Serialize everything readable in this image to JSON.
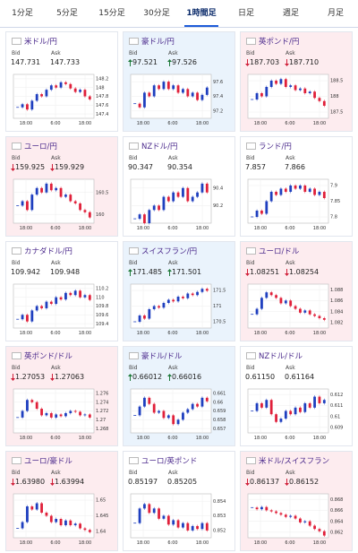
{
  "tabs": {
    "items": [
      "1分足",
      "5分足",
      "15分足",
      "30分足",
      "1時間足",
      "日足",
      "週足",
      "月足"
    ],
    "active": 4
  },
  "labels": {
    "bid": "Bid",
    "ask": "Ask"
  },
  "xticks": [
    "18:00",
    "6:00",
    "18:00"
  ],
  "cards": [
    {
      "title": "米ドル/円",
      "bid": "147.731",
      "ask": "147.733",
      "trend": null,
      "ylim": [
        147.3,
        148.3
      ],
      "yticks": [
        148.2,
        148,
        147.8,
        147.6,
        147.4
      ],
      "values": [
        147.55,
        147.62,
        147.5,
        147.7,
        147.85,
        147.8,
        147.95,
        148.05,
        148.0,
        148.12,
        148.08,
        147.98,
        147.9,
        147.95,
        147.8,
        147.73
      ]
    },
    {
      "title": "豪ドル/円",
      "bid": "97.521",
      "ask": "97.526",
      "trend": "up",
      "ylim": [
        97.1,
        97.7
      ],
      "yticks": [
        97.6,
        97.4,
        97.2
      ],
      "values": [
        97.3,
        97.25,
        97.45,
        97.4,
        97.55,
        97.5,
        97.6,
        97.5,
        97.55,
        97.45,
        97.5,
        97.4,
        97.45,
        97.35,
        97.42,
        97.52
      ]
    },
    {
      "title": "英ポンド/円",
      "bid": "187.703",
      "ask": "187.710",
      "trend": "down",
      "ylim": [
        187.3,
        188.7
      ],
      "yticks": [
        188.5,
        188,
        187.5
      ],
      "values": [
        187.9,
        188.1,
        188.0,
        188.3,
        188.5,
        188.4,
        188.55,
        188.3,
        188.35,
        188.2,
        188.25,
        188.1,
        188.15,
        187.95,
        187.85,
        187.7
      ]
    },
    {
      "title": "ユーロ/円",
      "bid": "159.925",
      "ask": "159.929",
      "trend": "down",
      "ylim": [
        159.8,
        160.8
      ],
      "yticks": [
        160.5,
        160
      ],
      "values": [
        160.2,
        160.3,
        160.1,
        160.45,
        160.6,
        160.5,
        160.7,
        160.55,
        160.6,
        160.4,
        160.45,
        160.3,
        160.25,
        160.1,
        160.05,
        159.93
      ]
    },
    {
      "title": "NZドル/円",
      "bid": "90.347",
      "ask": "90.354",
      "trend": null,
      "ylim": [
        90.0,
        90.5
      ],
      "yticks": [
        90.4,
        90.2
      ],
      "values": [
        90.05,
        90.1,
        90.0,
        90.15,
        90.2,
        90.15,
        90.3,
        90.25,
        90.35,
        90.3,
        90.4,
        90.25,
        90.3,
        90.35,
        90.45,
        90.35
      ]
    },
    {
      "title": "ランド/円",
      "bid": "7.857",
      "ask": "7.866",
      "trend": null,
      "ylim": [
        7.78,
        7.92
      ],
      "yticks": [
        7.9,
        7.85,
        7.8
      ],
      "values": [
        7.8,
        7.82,
        7.81,
        7.85,
        7.88,
        7.87,
        7.89,
        7.88,
        7.9,
        7.89,
        7.9,
        7.88,
        7.89,
        7.87,
        7.88,
        7.86
      ]
    },
    {
      "title": "カナダドル/円",
      "bid": "109.942",
      "ask": "109.948",
      "trend": null,
      "ylim": [
        109.3,
        110.3
      ],
      "yticks": [
        110.2,
        110,
        109.8,
        109.6,
        109.4
      ],
      "values": [
        109.5,
        109.6,
        109.45,
        109.7,
        109.8,
        109.75,
        109.9,
        109.85,
        110.0,
        109.95,
        110.1,
        110.05,
        110.15,
        110.0,
        110.05,
        109.94
      ]
    },
    {
      "title": "スイスフラン/円",
      "bid": "171.485",
      "ask": "171.501",
      "trend": "up",
      "ylim": [
        170.3,
        171.7
      ],
      "yticks": [
        171.5,
        171,
        170.5
      ],
      "values": [
        170.5,
        170.7,
        170.6,
        170.9,
        171.0,
        170.95,
        171.1,
        171.2,
        171.15,
        171.3,
        171.25,
        171.4,
        171.35,
        171.45,
        171.55,
        171.49
      ]
    },
    {
      "title": "ユーロ/ドル",
      "bid": "1.08251",
      "ask": "1.08254",
      "trend": "down",
      "ylim": [
        1.081,
        1.089
      ],
      "yticks": [
        1.088,
        1.086,
        1.084,
        1.082
      ],
      "values": [
        1.0835,
        1.0845,
        1.0865,
        1.0875,
        1.087,
        1.0865,
        1.0855,
        1.086,
        1.085,
        1.0845,
        1.0838,
        1.0842,
        1.0835,
        1.0832,
        1.0828,
        1.0825
      ]
    },
    {
      "title": "英ポンド/ドル",
      "bid": "1.27053",
      "ask": "1.27063",
      "trend": "down",
      "ylim": [
        1.267,
        1.277
      ],
      "yticks": [
        1.276,
        1.274,
        1.272,
        1.27,
        1.268
      ],
      "values": [
        1.2705,
        1.272,
        1.2745,
        1.274,
        1.2725,
        1.271,
        1.2715,
        1.2705,
        1.2712,
        1.2708,
        1.2715,
        1.272,
        1.2718,
        1.271,
        1.2712,
        1.2705
      ]
    },
    {
      "title": "豪ドル/ドル",
      "bid": "0.66012",
      "ask": "0.66016",
      "trend": "up",
      "ylim": [
        0.6565,
        0.6615
      ],
      "yticks": [
        0.661,
        0.66,
        0.659,
        0.658,
        0.657
      ],
      "values": [
        0.6585,
        0.6595,
        0.6605,
        0.6598,
        0.6588,
        0.659,
        0.6582,
        0.6585,
        0.6575,
        0.658,
        0.6588,
        0.6592,
        0.6598,
        0.6595,
        0.6605,
        0.6601
      ]
    },
    {
      "title": "NZドル/ドル",
      "bid": "0.61150",
      "ask": "0.61164",
      "trend": null,
      "ylim": [
        0.6085,
        0.6125
      ],
      "yticks": [
        0.612,
        0.611,
        0.61,
        0.609
      ],
      "values": [
        0.6105,
        0.6112,
        0.6108,
        0.6115,
        0.6102,
        0.6095,
        0.6098,
        0.6105,
        0.6102,
        0.6108,
        0.6104,
        0.6112,
        0.6108,
        0.6118,
        0.6112,
        0.6115
      ]
    },
    {
      "title": "ユーロ/豪ドル",
      "bid": "1.63980",
      "ask": "1.63994",
      "trend": "down",
      "ylim": [
        1.638,
        1.652
      ],
      "yticks": [
        1.65,
        1.645,
        1.64
      ],
      "values": [
        1.641,
        1.643,
        1.648,
        1.647,
        1.649,
        1.646,
        1.645,
        1.643,
        1.644,
        1.642,
        1.6435,
        1.642,
        1.6425,
        1.641,
        1.6405,
        1.6398
      ]
    },
    {
      "title": "ユーロ/英ポンド",
      "bid": "0.85197",
      "ask": "0.85205",
      "trend": null,
      "ylim": [
        0.8515,
        0.8545
      ],
      "yticks": [
        0.854,
        0.853,
        0.852
      ],
      "values": [
        0.8525,
        0.8535,
        0.8538,
        0.8532,
        0.8535,
        0.8528,
        0.853,
        0.8524,
        0.8527,
        0.8522,
        0.8525,
        0.852,
        0.8523,
        0.8521,
        0.8525,
        0.852
      ]
    },
    {
      "title": "米ドル/スイスフラン",
      "bid": "0.86137",
      "ask": "0.86152",
      "trend": "down",
      "ylim": [
        0.861,
        0.869
      ],
      "yticks": [
        0.868,
        0.866,
        0.864,
        0.862
      ],
      "values": [
        0.8665,
        0.8662,
        0.8666,
        0.866,
        0.8658,
        0.8655,
        0.8652,
        0.8648,
        0.865,
        0.8645,
        0.8638,
        0.864,
        0.8632,
        0.8626,
        0.8622,
        0.8614
      ]
    }
  ]
}
